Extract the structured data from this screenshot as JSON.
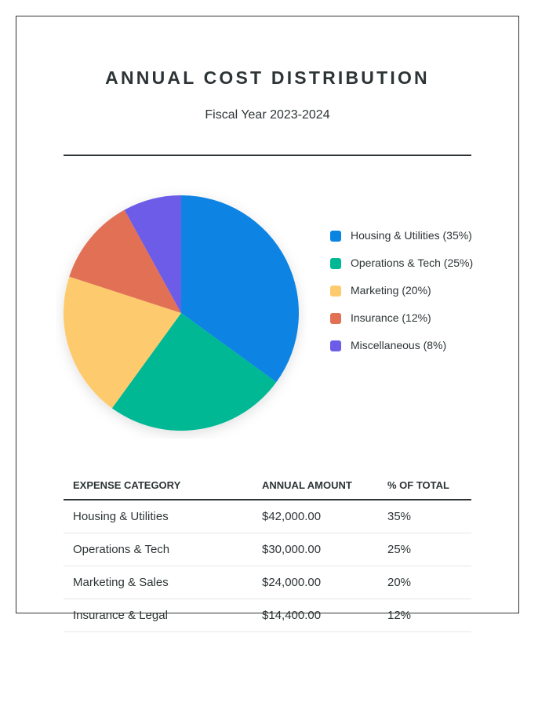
{
  "header": {
    "title": "ANNUAL COST DISTRIBUTION",
    "subtitle": "Fiscal Year 2023-2024"
  },
  "chart_data": {
    "type": "pie",
    "categories": [
      "Housing & Utilities",
      "Operations & Tech",
      "Marketing",
      "Insurance",
      "Miscellaneous"
    ],
    "values": [
      35,
      25,
      20,
      12,
      8
    ],
    "colors": [
      "#0984e3",
      "#00b894",
      "#fdcb6e",
      "#e17055",
      "#6c5ce7"
    ],
    "legend_labels": [
      "Housing & Utilities (35%)",
      "Operations & Tech (25%)",
      "Marketing (20%)",
      "Insurance (12%)",
      "Miscellaneous (8%)"
    ],
    "legend_position": "right"
  },
  "table": {
    "headers": [
      "EXPENSE CATEGORY",
      "ANNUAL AMOUNT",
      "% OF TOTAL"
    ],
    "rows": [
      [
        "Housing & Utilities",
        "$42,000.00",
        "35%"
      ],
      [
        "Operations & Tech",
        "$30,000.00",
        "25%"
      ],
      [
        "Marketing & Sales",
        "$24,000.00",
        "20%"
      ],
      [
        "Insurance & Legal",
        "$14,400.00",
        "12%"
      ]
    ]
  }
}
